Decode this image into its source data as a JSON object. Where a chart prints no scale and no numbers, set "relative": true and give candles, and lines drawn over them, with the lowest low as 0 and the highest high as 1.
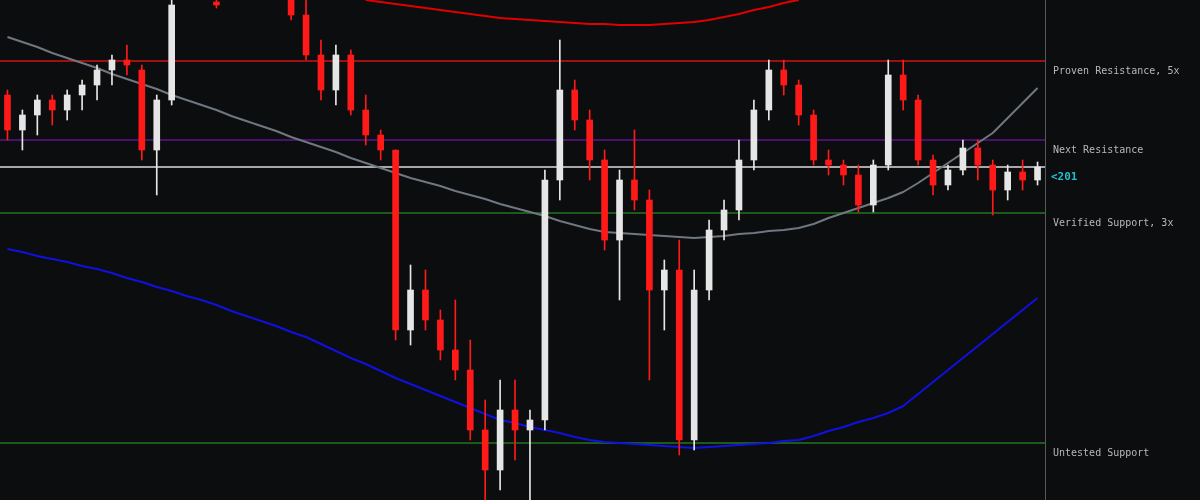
{
  "chart_data": {
    "type": "candlestick",
    "relative": true,
    "categories": [
      null,
      null,
      null,
      null,
      null,
      null,
      null,
      null,
      null,
      null,
      null,
      null,
      null,
      null,
      null,
      null,
      null,
      null,
      null,
      null,
      null,
      null,
      null,
      null,
      null,
      null,
      null,
      null,
      null,
      null,
      null,
      null,
      null,
      null,
      null,
      null,
      null,
      null,
      null,
      null,
      null,
      null,
      null,
      null,
      null,
      null,
      null,
      null,
      null,
      null,
      null,
      null,
      null,
      null,
      null,
      null,
      null,
      null,
      null,
      null,
      null,
      null,
      null,
      null,
      null,
      null,
      null,
      null,
      null,
      null
    ],
    "ohlc": [
      [
        0.81,
        0.82,
        0.72,
        0.74
      ],
      [
        0.74,
        0.78,
        0.7,
        0.77
      ],
      [
        0.77,
        0.81,
        0.73,
        0.8
      ],
      [
        0.8,
        0.81,
        0.75,
        0.78
      ],
      [
        0.78,
        0.82,
        0.76,
        0.81
      ],
      [
        0.81,
        0.84,
        0.78,
        0.83
      ],
      [
        0.83,
        0.87,
        0.8,
        0.86
      ],
      [
        0.86,
        0.89,
        0.83,
        0.88
      ],
      [
        0.88,
        0.91,
        0.85,
        0.87
      ],
      [
        0.86,
        0.87,
        0.68,
        0.7
      ],
      [
        0.7,
        0.81,
        0.61,
        0.8
      ],
      [
        0.8,
        1,
        0.79,
        0.99
      ],
      null,
      null,
      [
        0.996,
        1,
        0.984,
        0.99
      ],
      null,
      null,
      null,
      null,
      [
        1,
        1,
        0.96,
        0.97
      ],
      [
        0.97,
        1,
        0.88,
        0.89
      ],
      [
        0.89,
        0.92,
        0.8,
        0.82
      ],
      [
        0.82,
        0.91,
        0.79,
        0.89
      ],
      [
        0.89,
        0.9,
        0.77,
        0.78
      ],
      [
        0.78,
        0.81,
        0.71,
        0.73
      ],
      [
        0.73,
        0.74,
        0.68,
        0.7
      ],
      [
        0.7,
        0.7,
        0.32,
        0.34
      ],
      [
        0.34,
        0.47,
        0.31,
        0.42
      ],
      [
        0.42,
        0.46,
        0.34,
        0.36
      ],
      [
        0.36,
        0.38,
        0.28,
        0.3
      ],
      [
        0.3,
        0.4,
        0.24,
        0.26
      ],
      [
        0.26,
        0.32,
        0.12,
        0.14
      ],
      [
        0.14,
        0.2,
        0,
        0.06
      ],
      [
        0.06,
        0.24,
        0.02,
        0.18
      ],
      [
        0.18,
        0.24,
        0.08,
        0.14
      ],
      [
        0.14,
        0.18,
        0,
        0.16
      ],
      [
        0.16,
        0.66,
        0.14,
        0.64
      ],
      [
        0.64,
        0.92,
        0.6,
        0.82
      ],
      [
        0.82,
        0.84,
        0.74,
        0.76
      ],
      [
        0.76,
        0.78,
        0.64,
        0.68
      ],
      [
        0.68,
        0.7,
        0.5,
        0.52
      ],
      [
        0.52,
        0.66,
        0.4,
        0.64
      ],
      [
        0.64,
        0.74,
        0.58,
        0.6
      ],
      [
        0.6,
        0.62,
        0.24,
        0.42
      ],
      [
        0.42,
        0.48,
        0.34,
        0.46
      ],
      [
        0.46,
        0.52,
        0.09,
        0.12
      ],
      [
        0.12,
        0.46,
        0.1,
        0.42
      ],
      [
        0.42,
        0.56,
        0.4,
        0.54
      ],
      [
        0.54,
        0.6,
        0.52,
        0.58
      ],
      [
        0.58,
        0.72,
        0.56,
        0.68
      ],
      [
        0.68,
        0.8,
        0.66,
        0.78
      ],
      [
        0.78,
        0.88,
        0.76,
        0.86
      ],
      [
        0.86,
        0.88,
        0.81,
        0.83
      ],
      [
        0.83,
        0.84,
        0.75,
        0.77
      ],
      [
        0.77,
        0.78,
        0.67,
        0.68
      ],
      [
        0.68,
        0.7,
        0.65,
        0.67
      ],
      [
        0.67,
        0.68,
        0.63,
        0.65
      ],
      [
        0.65,
        0.67,
        0.576,
        0.59
      ],
      [
        0.59,
        0.68,
        0.576,
        0.67
      ],
      [
        0.67,
        0.88,
        0.66,
        0.85
      ],
      [
        0.85,
        0.88,
        0.78,
        0.8
      ],
      [
        0.8,
        0.81,
        0.67,
        0.68
      ],
      [
        0.68,
        0.69,
        0.61,
        0.63
      ],
      [
        0.63,
        0.67,
        0.62,
        0.66
      ],
      [
        0.66,
        0.72,
        0.65,
        0.704
      ],
      [
        0.704,
        0.72,
        0.64,
        0.67
      ],
      [
        0.67,
        0.68,
        0.57,
        0.62
      ],
      [
        0.62,
        0.67,
        0.6,
        0.656
      ],
      [
        0.656,
        0.68,
        0.62,
        0.64
      ],
      [
        0.64,
        0.676,
        0.63,
        0.666
      ]
    ],
    "colors": [
      "#ff1a1a",
      "#e6e6e6",
      "#e6e6e6",
      "#ff1a1a",
      "#e6e6e6",
      "#e6e6e6",
      "#e6e6e6",
      "#e6e6e6",
      "#ff1a1a",
      "#ff1a1a",
      "#e6e6e6",
      "#e6e6e6",
      null,
      null,
      "#ff1a1a",
      null,
      null,
      null,
      null,
      "#ff1a1a",
      "#ff1a1a",
      "#ff1a1a",
      "#e6e6e6",
      "#ff1a1a",
      "#ff1a1a",
      "#ff1a1a",
      "#ff1a1a",
      "#e6e6e6",
      "#ff1a1a",
      "#ff1a1a",
      "#ff1a1a",
      "#ff1a1a",
      "#ff1a1a",
      "#e6e6e6",
      "#ff1a1a",
      "#e6e6e6",
      "#e6e6e6",
      "#e6e6e6",
      "#ff1a1a",
      "#ff1a1a",
      "#ff1a1a",
      "#e6e6e6",
      "#ff1a1a",
      "#ff1a1a",
      "#e6e6e6",
      "#ff1a1a",
      "#e6e6e6",
      "#e6e6e6",
      "#e6e6e6",
      "#e6e6e6",
      "#e6e6e6",
      "#e6e6e6",
      "#ff1a1a",
      "#ff1a1a",
      "#ff1a1a",
      "#ff1a1a",
      "#ff1a1a",
      "#ff1a1a",
      "#e6e6e6",
      "#e6e6e6",
      "#ff1a1a",
      "#ff1a1a",
      "#ff1a1a",
      "#e6e6e6",
      "#e6e6e6",
      "#ff1a1a",
      "#ff1a1a",
      "#e6e6e6",
      "#ff1a1a",
      "#e6e6e6"
    ],
    "series": [
      {
        "type": "line",
        "color": "#6f7780",
        "values": [
          0.926,
          0.916,
          0.906,
          0.894,
          0.884,
          0.874,
          0.864,
          0.852,
          0.842,
          0.832,
          0.822,
          0.81,
          0.8,
          0.79,
          0.78,
          0.768,
          0.758,
          0.748,
          0.738,
          0.726,
          0.716,
          0.706,
          0.696,
          0.684,
          0.674,
          0.664,
          0.654,
          0.644,
          0.636,
          0.628,
          0.618,
          0.61,
          0.602,
          0.592,
          0.584,
          0.576,
          0.568,
          0.558,
          0.55,
          0.542,
          0.536,
          0.534,
          0.532,
          0.53,
          0.528,
          0.526,
          0.524,
          0.526,
          0.528,
          0.532,
          0.534,
          0.538,
          0.54,
          0.544,
          0.552,
          0.564,
          0.574,
          0.584,
          0.594,
          0.604,
          0.616,
          0.634,
          0.654,
          0.674,
          0.694,
          0.714,
          0.734,
          0.764,
          0.794,
          0.824
        ]
      },
      {
        "type": "line",
        "color": "#1010e0",
        "values": [
          0.502,
          0.496,
          0.488,
          0.482,
          0.476,
          0.468,
          0.462,
          0.454,
          0.444,
          0.436,
          0.426,
          0.418,
          0.408,
          0.4,
          0.39,
          0.378,
          0.368,
          0.358,
          0.348,
          0.336,
          0.326,
          0.312,
          0.298,
          0.284,
          0.272,
          0.258,
          0.244,
          0.232,
          0.22,
          0.208,
          0.196,
          0.184,
          0.172,
          0.16,
          0.154,
          0.146,
          0.14,
          0.134,
          0.126,
          0.12,
          0.116,
          0.114,
          0.112,
          0.11,
          0.108,
          0.106,
          0.104,
          0.106,
          0.108,
          0.11,
          0.112,
          0.114,
          0.118,
          0.12,
          0.128,
          0.138,
          0.146,
          0.156,
          0.164,
          0.174,
          0.188,
          0.212,
          0.236,
          0.26,
          0.284,
          0.308,
          0.332,
          0.356,
          0.38,
          0.404
        ]
      },
      {
        "type": "line",
        "color": "#e00000",
        "values": [
          null,
          null,
          null,
          null,
          null,
          null,
          null,
          null,
          null,
          null,
          null,
          null,
          null,
          null,
          null,
          null,
          null,
          null,
          null,
          null,
          null,
          null,
          null,
          null,
          1,
          0.996,
          0.992,
          0.988,
          0.984,
          0.98,
          0.976,
          0.972,
          0.968,
          0.964,
          0.962,
          0.96,
          0.958,
          0.956,
          0.954,
          0.952,
          0.952,
          0.95,
          0.95,
          0.95,
          0.952,
          0.954,
          0.956,
          0.96,
          0.966,
          0.972,
          0.98,
          0.986,
          0.994,
          1,
          null,
          null,
          null,
          null,
          null,
          null,
          null,
          null,
          null,
          null,
          null,
          null,
          null,
          null,
          null,
          null
        ]
      }
    ],
    "annotations": [
      "<201"
    ],
    "ref_lines": [
      {
        "axis": "y",
        "value": 0.878,
        "label": "Proven Resistance, 5x",
        "color": "#a01010"
      },
      {
        "axis": "y",
        "value": 0.72,
        "label": "Next Resistance",
        "color": "#4a1070"
      },
      {
        "axis": "y",
        "value": 0.666,
        "color": "#a8a8a8"
      },
      {
        "axis": "y",
        "value": 0.574,
        "label": "Verified Support, 3x",
        "color": "#1c5a1c"
      },
      {
        "axis": "y",
        "value": 0.114,
        "label": "Untested Support",
        "color": "#1c5a1c"
      }
    ]
  }
}
